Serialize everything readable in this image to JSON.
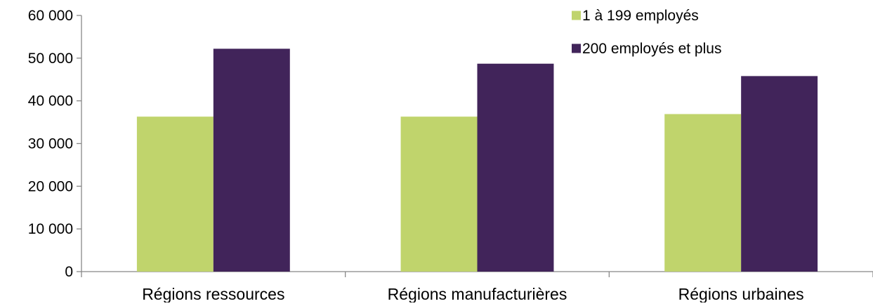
{
  "chart_data": {
    "type": "bar",
    "categories": [
      "Régions ressources",
      "Régions manufacturières",
      "Régions urbaines"
    ],
    "series": [
      {
        "name": "1 à 199 employés",
        "values": [
          36300,
          36300,
          36900
        ],
        "color": "#c0d46c"
      },
      {
        "name": "200 employés et plus",
        "values": [
          52200,
          48700,
          45800
        ],
        "color": "#41245a"
      }
    ],
    "ylim": [
      0,
      60000
    ],
    "yticks": [
      0,
      10000,
      20000,
      30000,
      40000,
      50000,
      60000
    ],
    "ytick_labels": [
      "0",
      "10 000",
      "20 000",
      "30 000",
      "40 000",
      "50 000",
      "60 000"
    ],
    "grid": false,
    "legend_position": "top-right",
    "title": "",
    "xlabel": "",
    "ylabel": ""
  }
}
